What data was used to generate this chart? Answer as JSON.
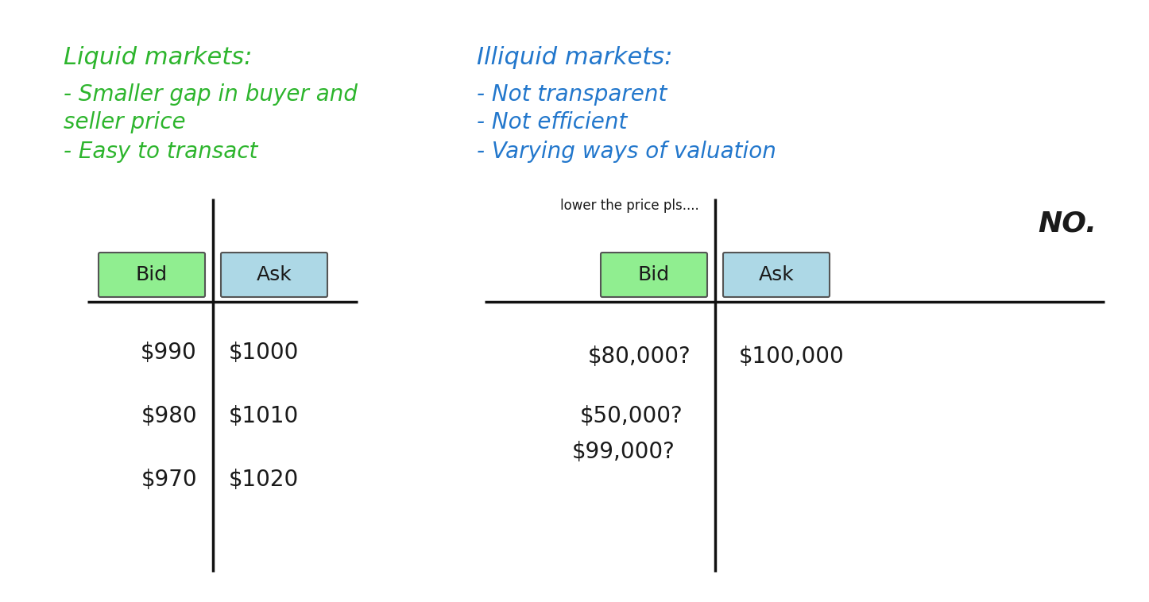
{
  "bg_color": "#ffffff",
  "liquid_title": "Liquid markets:",
  "liquid_bullets": [
    "- Smaller gap in buyer and",
    "seller price",
    "- Easy to transact"
  ],
  "liquid_color": "#2db52d",
  "illiquid_title": "Illiquid markets:",
  "illiquid_bullets": [
    "- Not transparent",
    "- Not efficient",
    "- Varying ways of valuation"
  ],
  "illiquid_color": "#2277cc",
  "bid_box_color": "#90ee90",
  "ask_box_color": "#add8e6",
  "bid_label": "Bid",
  "ask_label": "Ask",
  "liquid_bid_values": [
    "$990",
    "$980",
    "$970"
  ],
  "liquid_ask_values": [
    "$1000",
    "$1010",
    "$1020"
  ],
  "lower_price_text": "lower the price pls....",
  "no_text": "NO.",
  "text_color": "#1a1a1a",
  "line_color": "#111111"
}
